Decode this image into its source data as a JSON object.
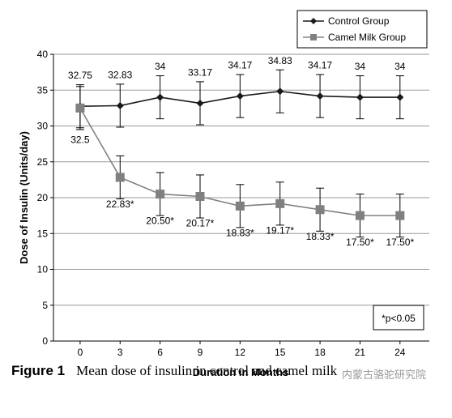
{
  "chart_data": {
    "type": "line",
    "x": [
      0,
      3,
      6,
      9,
      12,
      15,
      18,
      21,
      24
    ],
    "xlabel": "Duration in Months",
    "ylabel": "Dose of Insulin (Units/day)",
    "xlim": [
      -2,
      26.2
    ],
    "ylim": [
      0,
      40
    ],
    "yticks": [
      0,
      5,
      10,
      15,
      20,
      25,
      30,
      35,
      40
    ],
    "grid": true,
    "legend_position": "top-right",
    "series": [
      {
        "name": "Control Group",
        "color": "#1a1a1a",
        "marker": "diamond",
        "values": [
          32.75,
          32.83,
          34,
          33.17,
          34.17,
          34.83,
          34.17,
          34,
          34
        ],
        "labels": [
          "32.75",
          "32.83",
          "34",
          "33.17",
          "34.17",
          "34.83",
          "34.17",
          "34",
          "34"
        ],
        "error": [
          3,
          3,
          3,
          3,
          3,
          3,
          3,
          3,
          3
        ]
      },
      {
        "name": "Camel Milk Group",
        "color": "#808080",
        "marker": "square",
        "values": [
          32.5,
          22.83,
          20.5,
          20.17,
          18.83,
          19.17,
          18.33,
          17.5,
          17.5
        ],
        "labels": [
          "32.5",
          "22.83*",
          "20.50*",
          "20.17*",
          "18.83*",
          "19.17*",
          "18.33*",
          "17.50*",
          "17.50*"
        ],
        "error": [
          3,
          3,
          3,
          3,
          3,
          3,
          3,
          3,
          3
        ]
      }
    ],
    "annotation": "*p<0.05"
  },
  "caption": {
    "figure_label": "Figure 1",
    "text": "Mean dose of insulin in control and camel milk"
  },
  "watermark": "内蒙古骆驼研究院"
}
